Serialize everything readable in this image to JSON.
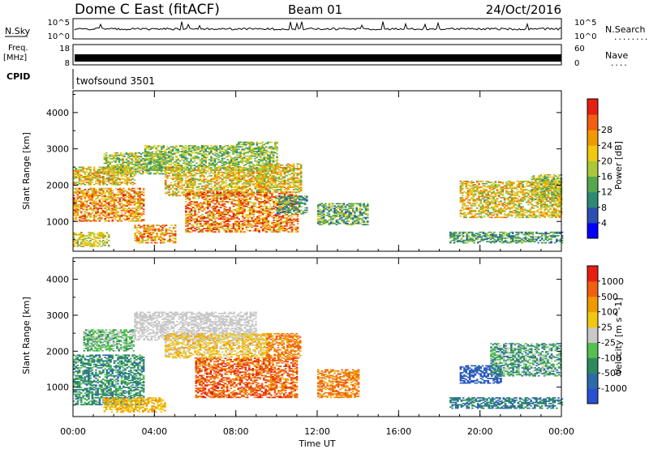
{
  "header": {
    "title": "Dome C East (fitACF)",
    "beam": "Beam 01",
    "date": "24/Oct/2016"
  },
  "top_panels": {
    "nsky_label": "N.Sky",
    "nsky_ticks": [
      "10^5",
      "10^0"
    ],
    "nsearch_label": "N.Search",
    "nsearch_dots": "........",
    "freq_label": "Freq.",
    "freq_unit": "[MHz]",
    "freq_ticks": [
      "18",
      "8"
    ],
    "nave_label": "Nave",
    "nave_dots": "....",
    "nave_ticks": [
      "60",
      "0"
    ],
    "cpid_label": "CPID",
    "cpid_value": "twofsound 3501"
  },
  "chart_data": [
    {
      "type": "heatmap",
      "name": "power",
      "ylabel": "Slant Range [km]",
      "xlabel": "Time UT",
      "x_ticks": [
        "00:00",
        "04:00",
        "08:00",
        "12:00",
        "16:00",
        "20:00",
        "00:00"
      ],
      "x_range_hours": [
        0,
        24
      ],
      "y_ticks": [
        "1000",
        "2000",
        "3000",
        "4000"
      ],
      "y_ticks_values": [
        1000,
        2000,
        3000,
        4000
      ],
      "ylim": [
        180,
        4600
      ],
      "colorbar": {
        "label": "Power [dB]",
        "ticks": [
          "4",
          "8",
          "12",
          "16",
          "20",
          "24",
          "28"
        ],
        "colors": [
          "#0000ff",
          "#2a4fb0",
          "#2d8a73",
          "#55a84f",
          "#a8c83a",
          "#f0c810",
          "#f09a00",
          "#f06010",
          "#e52010"
        ]
      },
      "regions": [
        {
          "t0": 0.0,
          "t1": 1.8,
          "r0": 300,
          "r1": 700,
          "level": [
            3,
            6
          ]
        },
        {
          "t0": 0.0,
          "t1": 3.5,
          "r0": 1000,
          "r1": 1900,
          "level": [
            4,
            8
          ]
        },
        {
          "t0": 0.0,
          "t1": 3.0,
          "r0": 2000,
          "r1": 2500,
          "level": [
            3,
            7
          ]
        },
        {
          "t0": 1.5,
          "t1": 4.5,
          "r0": 2300,
          "r1": 2900,
          "level": [
            2,
            6
          ]
        },
        {
          "t0": 3.5,
          "t1": 8.0,
          "r0": 2400,
          "r1": 3100,
          "level": [
            2,
            5
          ]
        },
        {
          "t0": 4.5,
          "t1": 9.5,
          "r0": 1700,
          "r1": 2500,
          "level": [
            3,
            7
          ]
        },
        {
          "t0": 5.5,
          "t1": 11.0,
          "r0": 700,
          "r1": 1800,
          "level": [
            4,
            9
          ]
        },
        {
          "t0": 8.0,
          "t1": 10.0,
          "r0": 2400,
          "r1": 3200,
          "level": [
            2,
            5
          ]
        },
        {
          "t0": 9.0,
          "t1": 11.2,
          "r0": 1800,
          "r1": 2600,
          "level": [
            3,
            7
          ]
        },
        {
          "t0": 10.0,
          "t1": 11.5,
          "r0": 1200,
          "r1": 1700,
          "level": [
            1,
            4
          ]
        },
        {
          "t0": 3.0,
          "t1": 5.0,
          "r0": 400,
          "r1": 900,
          "level": [
            4,
            8
          ]
        },
        {
          "t0": 12.0,
          "t1": 14.5,
          "r0": 900,
          "r1": 1500,
          "level": [
            1,
            5
          ]
        },
        {
          "t0": 19.0,
          "t1": 24.0,
          "r0": 1100,
          "r1": 2100,
          "level": [
            3,
            7
          ]
        },
        {
          "t0": 18.5,
          "t1": 24.0,
          "r0": 400,
          "r1": 700,
          "level": [
            1,
            4
          ]
        },
        {
          "t0": 22.5,
          "t1": 24.0,
          "r0": 1600,
          "r1": 2300,
          "level": [
            2,
            6
          ]
        }
      ]
    },
    {
      "type": "heatmap",
      "name": "velocity",
      "ylabel": "Slant Range [km]",
      "xlabel": "Time UT",
      "x_ticks": [
        "00:00",
        "04:00",
        "08:00",
        "12:00",
        "16:00",
        "20:00",
        "00:00"
      ],
      "x_range_hours": [
        0,
        24
      ],
      "y_ticks": [
        "1000",
        "2000",
        "3000",
        "4000"
      ],
      "y_ticks_values": [
        1000,
        2000,
        3000,
        4000
      ],
      "ylim": [
        180,
        4600
      ],
      "colorbar": {
        "label": "Velocity [m s^-1]",
        "ticks": [
          "1000",
          "500",
          "100",
          "25",
          "-25",
          "-100",
          "-500",
          "-1000"
        ],
        "colors": [
          "#2a4fd0",
          "#2d6aa8",
          "#2d8a60",
          "#55c050",
          "#c8c8c8",
          "#f0c810",
          "#f09a00",
          "#f06010",
          "#e52010"
        ]
      },
      "regions": [
        {
          "t0": 0.0,
          "t1": 3.5,
          "r0": 500,
          "r1": 1900,
          "level": [
            1,
            3
          ]
        },
        {
          "t0": 1.5,
          "t1": 4.5,
          "r0": 300,
          "r1": 700,
          "level": [
            5,
            6
          ]
        },
        {
          "t0": 0.5,
          "t1": 3.0,
          "r0": 2000,
          "r1": 2600,
          "level": [
            2,
            4
          ]
        },
        {
          "t0": 3.0,
          "t1": 9.0,
          "r0": 2300,
          "r1": 3100,
          "level": [
            4,
            4
          ]
        },
        {
          "t0": 4.5,
          "t1": 9.5,
          "r0": 1800,
          "r1": 2500,
          "level": [
            4,
            6
          ]
        },
        {
          "t0": 6.0,
          "t1": 11.0,
          "r0": 700,
          "r1": 1800,
          "level": [
            6,
            8
          ]
        },
        {
          "t0": 9.5,
          "t1": 11.2,
          "r0": 1800,
          "r1": 2500,
          "level": [
            6,
            7
          ]
        },
        {
          "t0": 12.0,
          "t1": 14.0,
          "r0": 700,
          "r1": 1500,
          "level": [
            6,
            7
          ]
        },
        {
          "t0": 19.0,
          "t1": 21.0,
          "r0": 1100,
          "r1": 1600,
          "level": [
            0,
            1
          ]
        },
        {
          "t0": 20.5,
          "t1": 24.0,
          "r0": 1300,
          "r1": 2200,
          "level": [
            1,
            4
          ]
        },
        {
          "t0": 18.5,
          "t1": 24.0,
          "r0": 400,
          "r1": 700,
          "level": [
            1,
            2
          ]
        }
      ]
    }
  ]
}
